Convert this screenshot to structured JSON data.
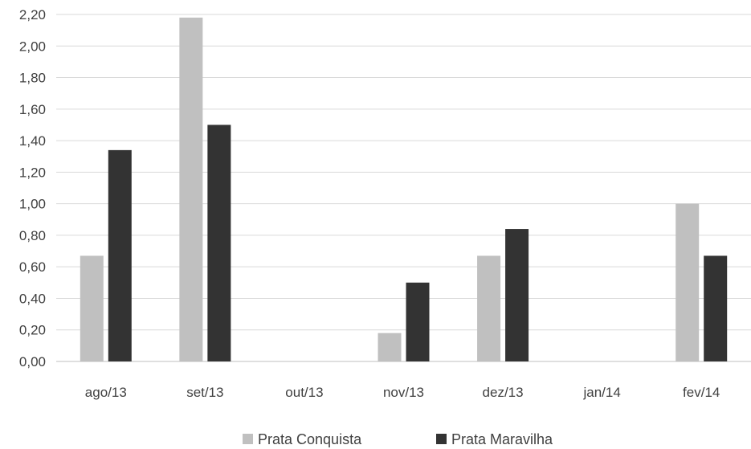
{
  "chart_data": {
    "type": "bar",
    "categories": [
      "ago/13",
      "set/13",
      "out/13",
      "nov/13",
      "dez/13",
      "jan/14",
      "fev/14"
    ],
    "series": [
      {
        "name": "Prata Conquista",
        "color": "#c0c0c0",
        "values": [
          0.67,
          2.18,
          0,
          0.18,
          0.67,
          0,
          1.0
        ]
      },
      {
        "name": "Prata Maravilha",
        "color": "#333333",
        "values": [
          1.34,
          1.5,
          0,
          0.5,
          0.84,
          0,
          0.67
        ]
      }
    ],
    "ylim": [
      0,
      2.2
    ],
    "yticks": [
      "0,00",
      "0,20",
      "0,40",
      "0,60",
      "0,80",
      "1,00",
      "1,20",
      "1,40",
      "1,60",
      "1,80",
      "2,00",
      "2,20"
    ],
    "grid": true,
    "legend_position": "bottom"
  }
}
